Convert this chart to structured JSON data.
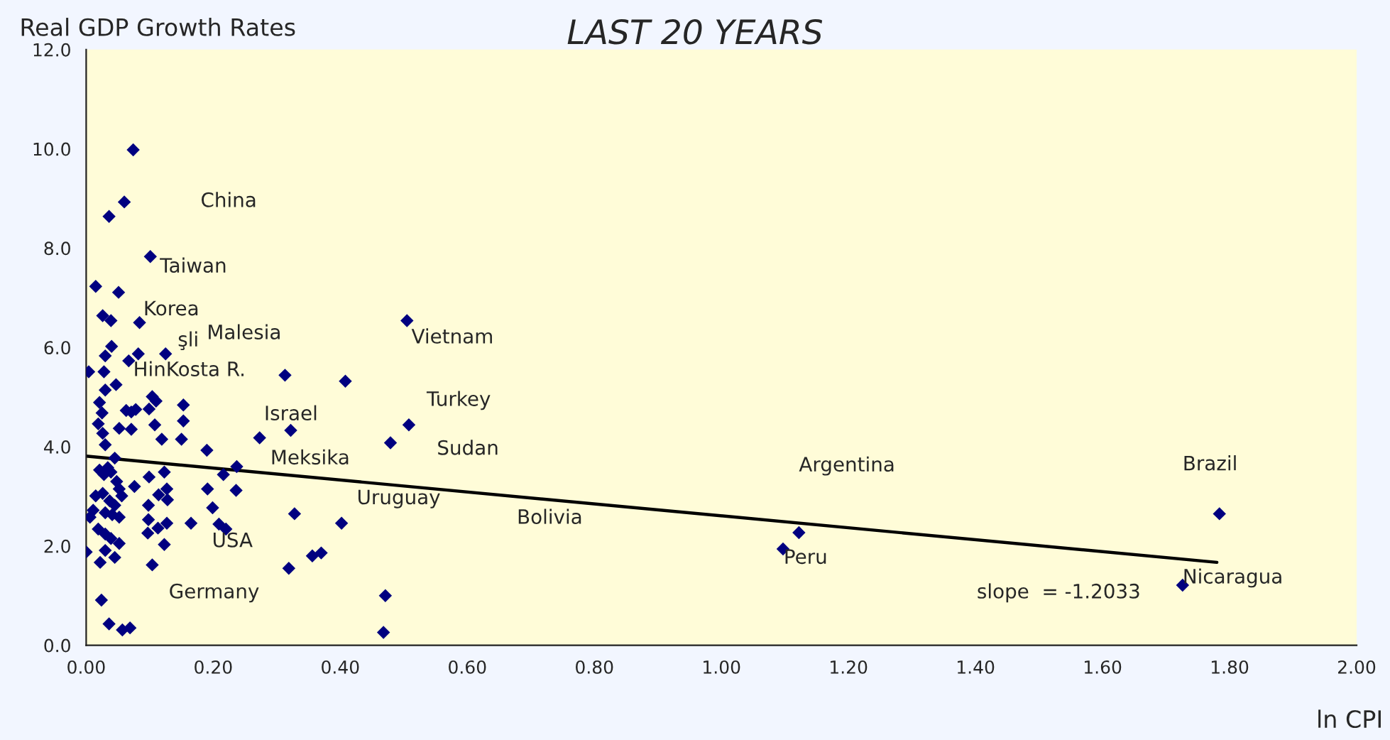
{
  "chart_data": {
    "type": "scatter",
    "title": "LAST 20 YEARS",
    "xlabel": "ln CPI",
    "ylabel": "Real GDP Growth Rates",
    "xlim": [
      0,
      2
    ],
    "ylim": [
      0,
      12
    ],
    "xticks": [
      {
        "value": 0,
        "label": "0.00"
      },
      {
        "value": 0.2,
        "label": "0.20"
      },
      {
        "value": 0.4,
        "label": "0.40"
      },
      {
        "value": 0.6,
        "label": "0.60"
      },
      {
        "value": 0.8,
        "label": "0.80"
      },
      {
        "value": 1.0,
        "label": "1.00"
      },
      {
        "value": 1.2,
        "label": "1.20"
      },
      {
        "value": 1.4,
        "label": "1.40"
      },
      {
        "value": 1.6,
        "label": "1.60"
      },
      {
        "value": 1.8,
        "label": "1.80"
      },
      {
        "value": 2.0,
        "label": "2.00"
      }
    ],
    "yticks": [
      {
        "value": 0,
        "label": "0.0"
      },
      {
        "value": 2,
        "label": "2.0"
      },
      {
        "value": 4,
        "label": "4.0"
      },
      {
        "value": 6,
        "label": "6.0"
      },
      {
        "value": 8,
        "label": "8.0"
      },
      {
        "value": 10,
        "label": "10.0"
      },
      {
        "value": 12,
        "label": "12.0"
      }
    ],
    "grid": false,
    "legend": false,
    "series": [
      {
        "marker": "diamond",
        "color": "#000080",
        "x": [
          0.074,
          0.06,
          0.036,
          0.101,
          0.015,
          0.051,
          0.026,
          0.039,
          0.084,
          0.04,
          0.03,
          0.082,
          0.125,
          0.067,
          0.004,
          0.028,
          0.047,
          0.03,
          0.021,
          0.025,
          0.104,
          0.11,
          0.099,
          0.063,
          0.078,
          0.071,
          0.153,
          0.153,
          0.108,
          0.052,
          0.071,
          0.019,
          0.026,
          0.03,
          0.119,
          0.15,
          0.19,
          0.045,
          0.034,
          0.021,
          0.028,
          0.039,
          0.048,
          0.099,
          0.123,
          0.216,
          0.237,
          0.052,
          0.076,
          0.015,
          0.026,
          0.037,
          0.045,
          0.056,
          0.127,
          0.114,
          0.128,
          0.191,
          0.236,
          0.011,
          0.006,
          0.03,
          0.041,
          0.052,
          0.098,
          0.098,
          0.127,
          0.165,
          0.199,
          0.209,
          0.22,
          0.019,
          0.03,
          0.039,
          0.052,
          0.097,
          0.113,
          0.123,
          0.0,
          0.03,
          0.045,
          0.022,
          0.104,
          0.024,
          0.036,
          0.057,
          0.069,
          0.505,
          0.313,
          0.408,
          0.508,
          0.479,
          0.322,
          0.273,
          0.328,
          0.402,
          0.356,
          0.37,
          0.319,
          0.471,
          0.468,
          1.097,
          1.122,
          1.784,
          1.726
        ],
        "values": [
          9.98,
          8.93,
          8.64,
          7.83,
          7.23,
          7.11,
          6.64,
          6.54,
          6.5,
          6.02,
          5.83,
          5.87,
          5.87,
          5.73,
          5.51,
          5.51,
          5.25,
          5.14,
          4.89,
          4.68,
          5.01,
          4.92,
          4.76,
          4.73,
          4.75,
          4.7,
          4.84,
          4.52,
          4.44,
          4.37,
          4.35,
          4.46,
          4.27,
          4.04,
          4.15,
          4.15,
          3.93,
          3.77,
          3.58,
          3.53,
          3.44,
          3.49,
          3.3,
          3.39,
          3.49,
          3.44,
          3.6,
          3.15,
          3.2,
          3.01,
          3.06,
          2.91,
          2.82,
          3.01,
          3.15,
          3.03,
          2.93,
          3.15,
          3.12,
          2.72,
          2.58,
          2.67,
          2.63,
          2.58,
          2.82,
          2.53,
          2.46,
          2.46,
          2.77,
          2.44,
          2.34,
          2.34,
          2.24,
          2.15,
          2.05,
          2.26,
          2.36,
          2.03,
          1.88,
          1.91,
          1.77,
          1.67,
          1.62,
          0.91,
          0.43,
          0.31,
          0.35,
          6.54,
          5.44,
          5.32,
          4.44,
          4.08,
          4.33,
          4.18,
          2.65,
          2.46,
          1.8,
          1.86,
          1.55,
          1.0,
          0.26,
          1.94,
          2.27,
          2.65,
          1.21
        ]
      },
      {
        "type": "line",
        "color": "#000000",
        "x": [
          0,
          1.78
        ],
        "values": [
          3.81,
          1.67
        ]
      }
    ],
    "annotations": [
      "China",
      "Taiwan",
      "Korea",
      "Malesia",
      "şli",
      "HinKosta R.",
      "Vietnam",
      "Turkey",
      "Israel",
      "Sudan",
      "Meksika",
      "Uruguay",
      "Bolivia",
      "USA",
      "Germany",
      "Argentina",
      "Peru",
      "Brazil",
      "Nicaragua",
      "slope  = -1.2033"
    ]
  }
}
